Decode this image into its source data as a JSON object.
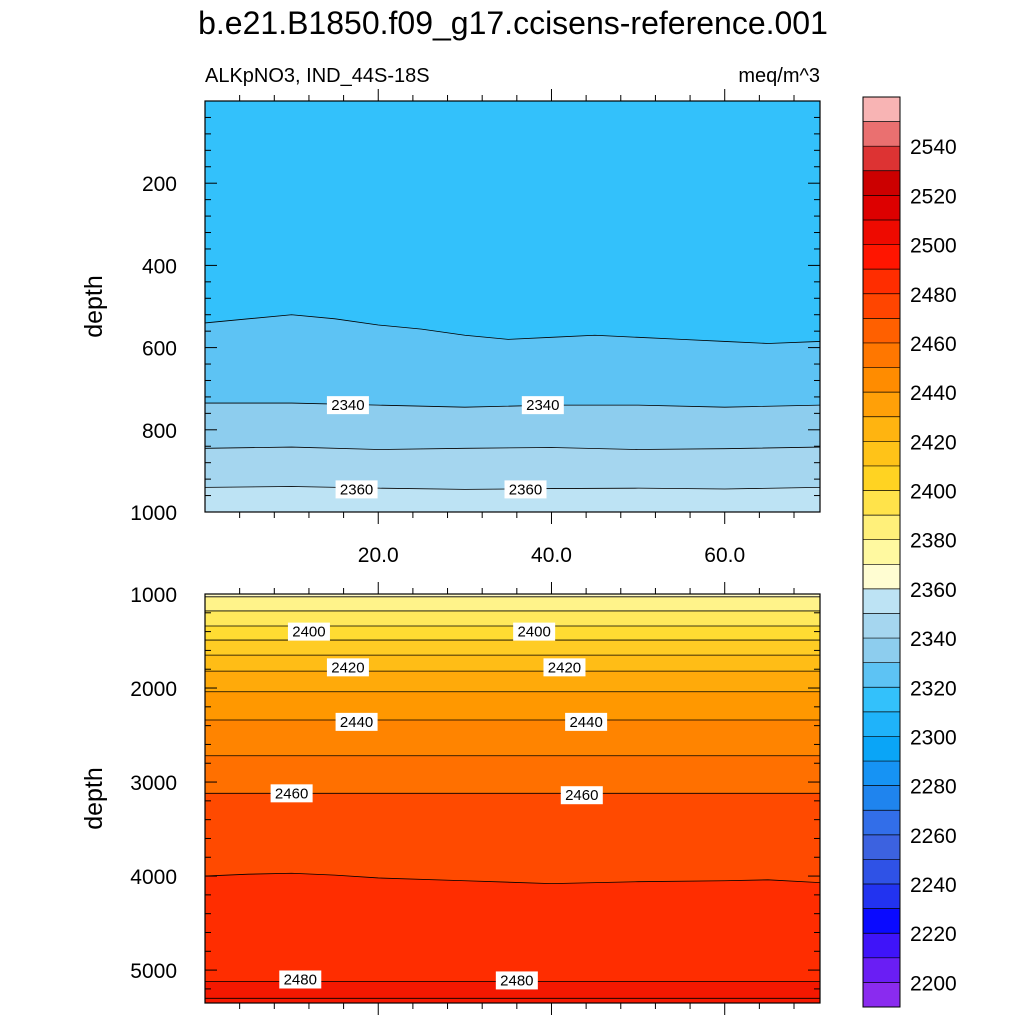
{
  "figure": {
    "title": "b.e21.B1850.f09_g17.ccisens-reference.001",
    "left_string": "ALKpNO3, IND_44S-18S",
    "right_string": "meq/m^3",
    "ylabel": "depth"
  },
  "chart_data": {
    "type": "filled-contour",
    "title": "b.e21.B1850.f09_g17.ccisens-reference.001",
    "variable": "ALKpNO3",
    "region": "IND_44S-18S",
    "units": "meq/m^3",
    "x_range": [
      0,
      71
    ],
    "x_ticks": [
      20.0,
      40.0,
      60.0
    ],
    "x_tick_labels": [
      "20.0",
      "40.0",
      "60.0"
    ],
    "panels": [
      {
        "name": "upper",
        "ylabel": "depth",
        "y_range": [
          0,
          1000
        ],
        "y_ticks": [
          200,
          400,
          600,
          800,
          1000
        ],
        "fills": [
          {
            "level": 2320,
            "color": "#33c1fb"
          },
          {
            "level": 2330,
            "color": "#5dc3f4"
          },
          {
            "level": 2340,
            "color": "#8dcdee"
          },
          {
            "level": 2350,
            "color": "#a5d6ef"
          },
          {
            "level": 2360,
            "color": "#bde3f4"
          }
        ],
        "contours": [
          {
            "level": 2330,
            "x": [
              0,
              5,
              10,
              15,
              20,
              25,
              30,
              35,
              40,
              45,
              50,
              55,
              60,
              65,
              71
            ],
            "y": [
              540,
              530,
              520,
              530,
              545,
              555,
              570,
              580,
              575,
              570,
              575,
              580,
              585,
              590,
              585
            ]
          },
          {
            "level": 2340,
            "x": [
              0,
              10,
              20,
              30,
              40,
              50,
              60,
              71
            ],
            "y": [
              735,
              735,
              740,
              745,
              740,
              740,
              745,
              740
            ]
          },
          {
            "level": 2350,
            "x": [
              0,
              10,
              20,
              30,
              40,
              50,
              60,
              71
            ],
            "y": [
              845,
              842,
              848,
              845,
              843,
              848,
              846,
              842
            ]
          },
          {
            "level": 2360,
            "x": [
              0,
              10,
              20,
              30,
              40,
              50,
              60,
              71
            ],
            "y": [
              940,
              938,
              942,
              945,
              943,
              942,
              944,
              940
            ]
          }
        ],
        "contour_labels": [
          {
            "text": "2340",
            "x": 16.5,
            "y": 740
          },
          {
            "text": "2340",
            "x": 39.0,
            "y": 740
          },
          {
            "text": "2360",
            "x": 17.5,
            "y": 945
          },
          {
            "text": "2360",
            "x": 37.0,
            "y": 945
          }
        ]
      },
      {
        "name": "lower",
        "ylabel": "depth",
        "y_range": [
          1000,
          5350
        ],
        "y_ticks": [
          1000,
          2000,
          3000,
          4000,
          5000
        ],
        "fills": [
          {
            "level": 2370,
            "color": "#fff9c4"
          },
          {
            "level": 2380,
            "color": "#fff38a"
          },
          {
            "level": 2390,
            "color": "#ffe95c"
          },
          {
            "level": 2400,
            "color": "#ffdc32"
          },
          {
            "level": 2410,
            "color": "#ffcc24"
          },
          {
            "level": 2420,
            "color": "#ffbd16"
          },
          {
            "level": 2430,
            "color": "#ffaa0a"
          },
          {
            "level": 2440,
            "color": "#ff9800"
          },
          {
            "level": 2450,
            "color": "#ff8400"
          },
          {
            "level": 2460,
            "color": "#ff7000"
          },
          {
            "level": 2470,
            "color": "#ff4a00"
          },
          {
            "level": 2480,
            "color": "#ff2d00"
          },
          {
            "level": 2490,
            "color": "#f41800"
          }
        ],
        "contours": [
          {
            "level": 2370,
            "x": [
              0,
              71
            ],
            "y": [
              1030,
              1030
            ]
          },
          {
            "level": 2380,
            "x": [
              0,
              71
            ],
            "y": [
              1180,
              1180
            ]
          },
          {
            "level": 2390,
            "x": [
              0,
              71
            ],
            "y": [
              1340,
              1340
            ]
          },
          {
            "level": 2400,
            "x": [
              0,
              71
            ],
            "y": [
              1490,
              1490
            ]
          },
          {
            "level": 2410,
            "x": [
              0,
              71
            ],
            "y": [
              1650,
              1650
            ]
          },
          {
            "level": 2420,
            "x": [
              0,
              71
            ],
            "y": [
              1820,
              1820
            ]
          },
          {
            "level": 2430,
            "x": [
              0,
              71
            ],
            "y": [
              2040,
              2040
            ]
          },
          {
            "level": 2440,
            "x": [
              0,
              71
            ],
            "y": [
              2340,
              2340
            ]
          },
          {
            "level": 2450,
            "x": [
              0,
              71
            ],
            "y": [
              2720,
              2720
            ]
          },
          {
            "level": 2460,
            "x": [
              0,
              71
            ],
            "y": [
              3120,
              3120
            ]
          },
          {
            "level": 2470,
            "x": [
              0,
              5,
              10,
              15,
              20,
              30,
              40,
              50,
              60,
              65,
              71
            ],
            "y": [
              4000,
              3980,
              3970,
              3990,
              4020,
              4050,
              4080,
              4060,
              4050,
              4040,
              4070
            ]
          },
          {
            "level": 2480,
            "x": [
              0,
              71
            ],
            "y": [
              5120,
              5120
            ]
          },
          {
            "level": 2490,
            "x": [
              0,
              71
            ],
            "y": [
              5300,
              5300
            ]
          }
        ],
        "contour_labels": [
          {
            "text": "2400",
            "x": 12.0,
            "y": 1400
          },
          {
            "text": "2400",
            "x": 38.0,
            "y": 1400
          },
          {
            "text": "2420",
            "x": 16.5,
            "y": 1780
          },
          {
            "text": "2420",
            "x": 41.5,
            "y": 1780
          },
          {
            "text": "2440",
            "x": 17.5,
            "y": 2360
          },
          {
            "text": "2440",
            "x": 44.0,
            "y": 2360
          },
          {
            "text": "2460",
            "x": 10.0,
            "y": 3120
          },
          {
            "text": "2460",
            "x": 43.5,
            "y": 3140
          },
          {
            "text": "2480",
            "x": 11.0,
            "y": 5100
          },
          {
            "text": "2480",
            "x": 36.0,
            "y": 5110
          }
        ]
      }
    ],
    "colorbar": {
      "levels": [
        2200,
        2210,
        2220,
        2230,
        2240,
        2250,
        2260,
        2270,
        2280,
        2290,
        2300,
        2310,
        2320,
        2330,
        2340,
        2350,
        2360,
        2370,
        2380,
        2390,
        2400,
        2410,
        2420,
        2430,
        2440,
        2450,
        2460,
        2470,
        2480,
        2490,
        2500,
        2510,
        2520,
        2530,
        2540,
        2550
      ],
      "label_levels": [
        2200,
        2220,
        2240,
        2260,
        2280,
        2300,
        2320,
        2340,
        2360,
        2380,
        2400,
        2420,
        2440,
        2460,
        2480,
        2500,
        2520,
        2540
      ],
      "colors": [
        "#8a2bef",
        "#6a1ef4",
        "#3f14f9",
        "#0a0aff",
        "#2233f0",
        "#2f52e6",
        "#3c62e0",
        "#326ee9",
        "#1f84ee",
        "#1693f4",
        "#0aa5f7",
        "#1fb3fa",
        "#33c1fb",
        "#5dc3f4",
        "#8dcdee",
        "#a5d6ef",
        "#bde3f4",
        "#fffdd2",
        "#fff9a0",
        "#fff07a",
        "#ffe34a",
        "#ffd322",
        "#ffc318",
        "#ffb410",
        "#ffa008",
        "#ff8c00",
        "#ff7700",
        "#ff6000",
        "#ff4500",
        "#ff2d00",
        "#ff1500",
        "#ee0a00",
        "#dd0000",
        "#cc0000",
        "#dd3333",
        "#ea7070",
        "#f8b4b4"
      ]
    }
  }
}
